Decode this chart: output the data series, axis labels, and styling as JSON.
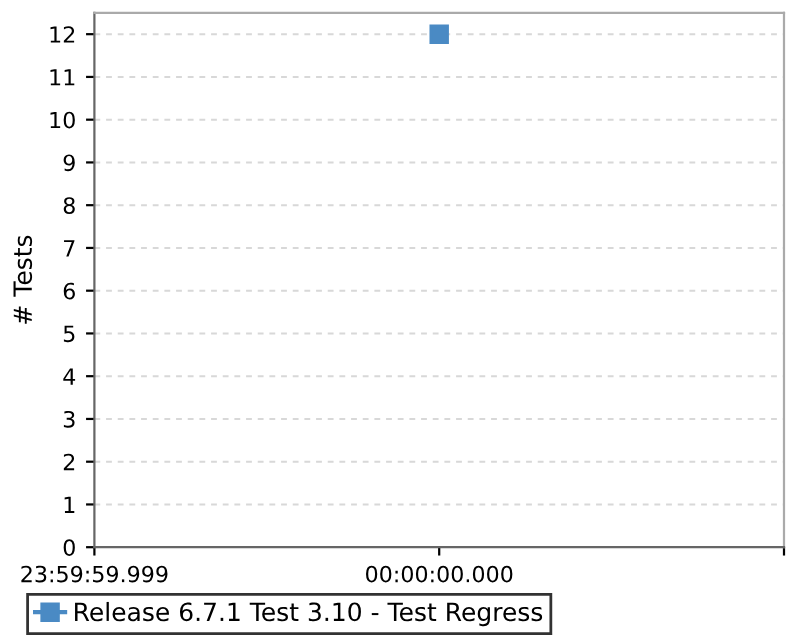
{
  "chart_data": {
    "type": "line",
    "ylabel": "# Tests",
    "categories": [
      "23:59:59.999",
      "00:00:00.000",
      null
    ],
    "series": [
      {
        "name": "Release 6.7.1 Test 3.10 - Test Regress",
        "color": "#4a8ac4",
        "values": [
          null,
          12,
          null
        ]
      }
    ],
    "ylim": [
      0,
      12.5
    ],
    "yticks": [
      0,
      1,
      2,
      3,
      4,
      5,
      6,
      7,
      8,
      9,
      10,
      11,
      12
    ],
    "grid": "y",
    "legend": "bottom",
    "marker": "square",
    "line_style": "solid"
  }
}
